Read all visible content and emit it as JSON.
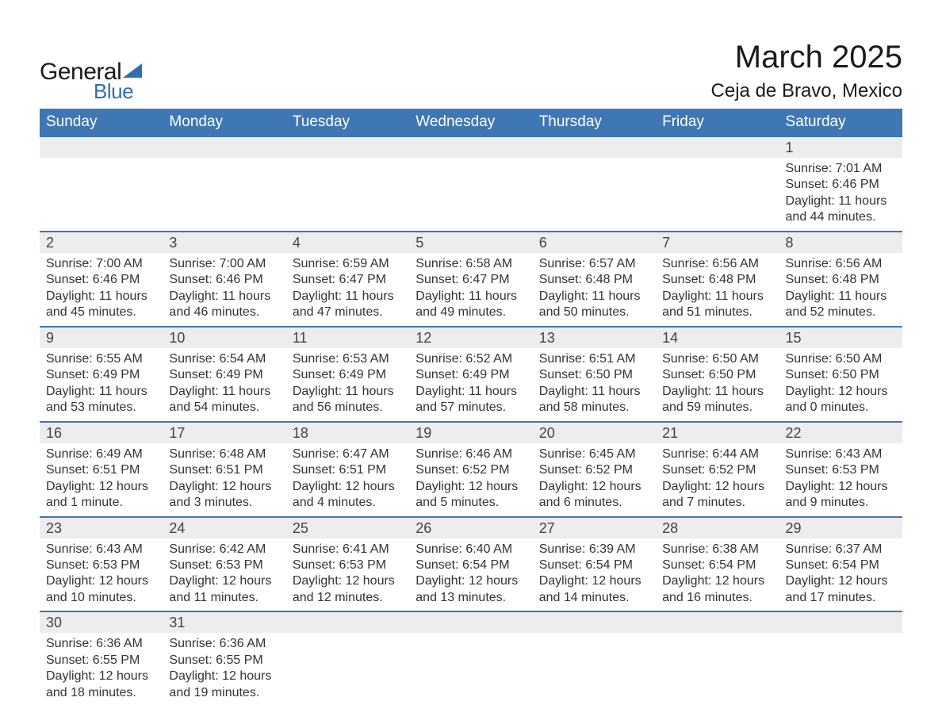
{
  "brand": {
    "name1": "General",
    "name2": "Blue",
    "accent_color": "#2f6fb0"
  },
  "header": {
    "title": "March 2025",
    "location": "Ceja de Bravo, Mexico"
  },
  "colors": {
    "th_bg": "#3e77b3",
    "th_text": "#ffffff",
    "row_separator": "#3e77b3",
    "daynum_bg": "#ededed",
    "text": "#333333",
    "background": "#ffffff"
  },
  "fonts": {
    "base_family": "Arial",
    "title_size_pt": 30,
    "location_size_pt": 18,
    "th_size_pt": 14,
    "cell_size_pt": 12
  },
  "weekdays": [
    "Sunday",
    "Monday",
    "Tuesday",
    "Wednesday",
    "Thursday",
    "Friday",
    "Saturday"
  ],
  "weeks": [
    [
      null,
      null,
      null,
      null,
      null,
      null,
      {
        "n": "1",
        "sunrise": "Sunrise: 7:01 AM",
        "sunset": "Sunset: 6:46 PM",
        "daylight1": "Daylight: 11 hours",
        "daylight2": "and 44 minutes."
      }
    ],
    [
      {
        "n": "2",
        "sunrise": "Sunrise: 7:00 AM",
        "sunset": "Sunset: 6:46 PM",
        "daylight1": "Daylight: 11 hours",
        "daylight2": "and 45 minutes."
      },
      {
        "n": "3",
        "sunrise": "Sunrise: 7:00 AM",
        "sunset": "Sunset: 6:46 PM",
        "daylight1": "Daylight: 11 hours",
        "daylight2": "and 46 minutes."
      },
      {
        "n": "4",
        "sunrise": "Sunrise: 6:59 AM",
        "sunset": "Sunset: 6:47 PM",
        "daylight1": "Daylight: 11 hours",
        "daylight2": "and 47 minutes."
      },
      {
        "n": "5",
        "sunrise": "Sunrise: 6:58 AM",
        "sunset": "Sunset: 6:47 PM",
        "daylight1": "Daylight: 11 hours",
        "daylight2": "and 49 minutes."
      },
      {
        "n": "6",
        "sunrise": "Sunrise: 6:57 AM",
        "sunset": "Sunset: 6:48 PM",
        "daylight1": "Daylight: 11 hours",
        "daylight2": "and 50 minutes."
      },
      {
        "n": "7",
        "sunrise": "Sunrise: 6:56 AM",
        "sunset": "Sunset: 6:48 PM",
        "daylight1": "Daylight: 11 hours",
        "daylight2": "and 51 minutes."
      },
      {
        "n": "8",
        "sunrise": "Sunrise: 6:56 AM",
        "sunset": "Sunset: 6:48 PM",
        "daylight1": "Daylight: 11 hours",
        "daylight2": "and 52 minutes."
      }
    ],
    [
      {
        "n": "9",
        "sunrise": "Sunrise: 6:55 AM",
        "sunset": "Sunset: 6:49 PM",
        "daylight1": "Daylight: 11 hours",
        "daylight2": "and 53 minutes."
      },
      {
        "n": "10",
        "sunrise": "Sunrise: 6:54 AM",
        "sunset": "Sunset: 6:49 PM",
        "daylight1": "Daylight: 11 hours",
        "daylight2": "and 54 minutes."
      },
      {
        "n": "11",
        "sunrise": "Sunrise: 6:53 AM",
        "sunset": "Sunset: 6:49 PM",
        "daylight1": "Daylight: 11 hours",
        "daylight2": "and 56 minutes."
      },
      {
        "n": "12",
        "sunrise": "Sunrise: 6:52 AM",
        "sunset": "Sunset: 6:49 PM",
        "daylight1": "Daylight: 11 hours",
        "daylight2": "and 57 minutes."
      },
      {
        "n": "13",
        "sunrise": "Sunrise: 6:51 AM",
        "sunset": "Sunset: 6:50 PM",
        "daylight1": "Daylight: 11 hours",
        "daylight2": "and 58 minutes."
      },
      {
        "n": "14",
        "sunrise": "Sunrise: 6:50 AM",
        "sunset": "Sunset: 6:50 PM",
        "daylight1": "Daylight: 11 hours",
        "daylight2": "and 59 minutes."
      },
      {
        "n": "15",
        "sunrise": "Sunrise: 6:50 AM",
        "sunset": "Sunset: 6:50 PM",
        "daylight1": "Daylight: 12 hours",
        "daylight2": "and 0 minutes."
      }
    ],
    [
      {
        "n": "16",
        "sunrise": "Sunrise: 6:49 AM",
        "sunset": "Sunset: 6:51 PM",
        "daylight1": "Daylight: 12 hours",
        "daylight2": "and 1 minute."
      },
      {
        "n": "17",
        "sunrise": "Sunrise: 6:48 AM",
        "sunset": "Sunset: 6:51 PM",
        "daylight1": "Daylight: 12 hours",
        "daylight2": "and 3 minutes."
      },
      {
        "n": "18",
        "sunrise": "Sunrise: 6:47 AM",
        "sunset": "Sunset: 6:51 PM",
        "daylight1": "Daylight: 12 hours",
        "daylight2": "and 4 minutes."
      },
      {
        "n": "19",
        "sunrise": "Sunrise: 6:46 AM",
        "sunset": "Sunset: 6:52 PM",
        "daylight1": "Daylight: 12 hours",
        "daylight2": "and 5 minutes."
      },
      {
        "n": "20",
        "sunrise": "Sunrise: 6:45 AM",
        "sunset": "Sunset: 6:52 PM",
        "daylight1": "Daylight: 12 hours",
        "daylight2": "and 6 minutes."
      },
      {
        "n": "21",
        "sunrise": "Sunrise: 6:44 AM",
        "sunset": "Sunset: 6:52 PM",
        "daylight1": "Daylight: 12 hours",
        "daylight2": "and 7 minutes."
      },
      {
        "n": "22",
        "sunrise": "Sunrise: 6:43 AM",
        "sunset": "Sunset: 6:53 PM",
        "daylight1": "Daylight: 12 hours",
        "daylight2": "and 9 minutes."
      }
    ],
    [
      {
        "n": "23",
        "sunrise": "Sunrise: 6:43 AM",
        "sunset": "Sunset: 6:53 PM",
        "daylight1": "Daylight: 12 hours",
        "daylight2": "and 10 minutes."
      },
      {
        "n": "24",
        "sunrise": "Sunrise: 6:42 AM",
        "sunset": "Sunset: 6:53 PM",
        "daylight1": "Daylight: 12 hours",
        "daylight2": "and 11 minutes."
      },
      {
        "n": "25",
        "sunrise": "Sunrise: 6:41 AM",
        "sunset": "Sunset: 6:53 PM",
        "daylight1": "Daylight: 12 hours",
        "daylight2": "and 12 minutes."
      },
      {
        "n": "26",
        "sunrise": "Sunrise: 6:40 AM",
        "sunset": "Sunset: 6:54 PM",
        "daylight1": "Daylight: 12 hours",
        "daylight2": "and 13 minutes."
      },
      {
        "n": "27",
        "sunrise": "Sunrise: 6:39 AM",
        "sunset": "Sunset: 6:54 PM",
        "daylight1": "Daylight: 12 hours",
        "daylight2": "and 14 minutes."
      },
      {
        "n": "28",
        "sunrise": "Sunrise: 6:38 AM",
        "sunset": "Sunset: 6:54 PM",
        "daylight1": "Daylight: 12 hours",
        "daylight2": "and 16 minutes."
      },
      {
        "n": "29",
        "sunrise": "Sunrise: 6:37 AM",
        "sunset": "Sunset: 6:54 PM",
        "daylight1": "Daylight: 12 hours",
        "daylight2": "and 17 minutes."
      }
    ],
    [
      {
        "n": "30",
        "sunrise": "Sunrise: 6:36 AM",
        "sunset": "Sunset: 6:55 PM",
        "daylight1": "Daylight: 12 hours",
        "daylight2": "and 18 minutes."
      },
      {
        "n": "31",
        "sunrise": "Sunrise: 6:36 AM",
        "sunset": "Sunset: 6:55 PM",
        "daylight1": "Daylight: 12 hours",
        "daylight2": "and 19 minutes."
      },
      null,
      null,
      null,
      null,
      null
    ]
  ]
}
